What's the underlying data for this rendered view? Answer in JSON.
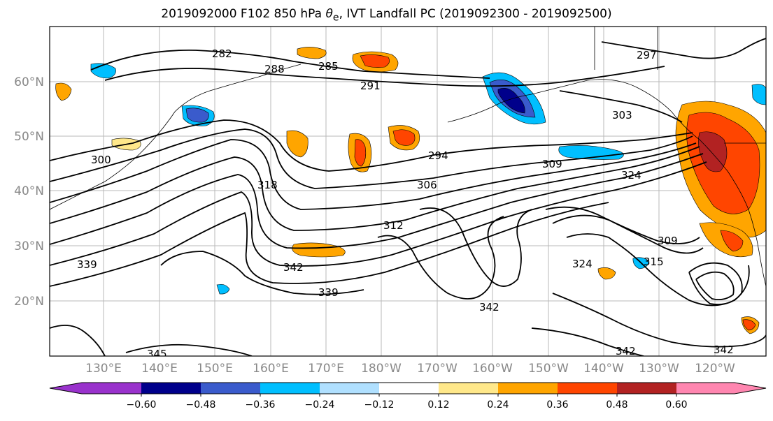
{
  "title": {
    "prefix": "2019092000 F102 850 hPa ",
    "theta": "θ",
    "sub_e": "e",
    "suffix": ", IVT Landfall PC (2019092300 - 2019092500)"
  },
  "map": {
    "lat_labels": [
      "60°N",
      "50°N",
      "40°N",
      "30°N",
      "20°N"
    ],
    "lon_labels": [
      "130°E",
      "140°E",
      "150°E",
      "160°E",
      "170°E",
      "180°W",
      "170°W",
      "160°W",
      "150°W",
      "140°W",
      "130°W",
      "120°W"
    ],
    "contour_labels": [
      "282",
      "285",
      "288",
      "291",
      "297",
      "303",
      "300",
      "294",
      "306",
      "309",
      "324",
      "318",
      "312",
      "309",
      "342",
      "339",
      "339",
      "345",
      "342",
      "342",
      "324",
      "342",
      "315"
    ]
  },
  "colorbar": {
    "colors": [
      "#9932CC",
      "#00008B",
      "#3A5BCC",
      "#00BFFF",
      "#B0E0FF",
      "#FFFFFF",
      "#FFE88A",
      "#FFA500",
      "#FF4500",
      "#B22222",
      "#FF86B0"
    ],
    "tick_labels": [
      "−0.60",
      "−0.48",
      "−0.36",
      "−0.24",
      "−0.12",
      "0.12",
      "0.24",
      "0.36",
      "0.48",
      "0.60"
    ]
  }
}
